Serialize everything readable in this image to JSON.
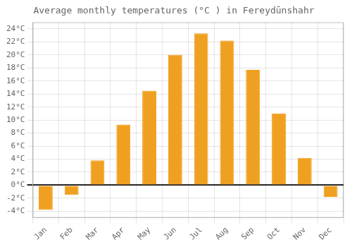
{
  "chart_data": {
    "type": "bar",
    "title": "Average monthly temperatures (°C ) in Fereydūnshahr",
    "categories": [
      "Jan",
      "Feb",
      "Mar",
      "Apr",
      "May",
      "Jun",
      "Jul",
      "Aug",
      "Sep",
      "Oct",
      "Nov",
      "Dec"
    ],
    "values": [
      -3.8,
      -1.5,
      3.8,
      9.3,
      14.5,
      20.0,
      23.3,
      22.2,
      17.7,
      11.0,
      4.2,
      -1.8
    ],
    "color": "#F0A020",
    "ylim": [
      -5,
      25
    ],
    "yticks": [
      {
        "value": -4,
        "label": "-4°C"
      },
      {
        "value": -2,
        "label": "-2°C"
      },
      {
        "value": 0,
        "label": "0°C"
      },
      {
        "value": 2,
        "label": "2°C"
      },
      {
        "value": 4,
        "label": "4°C"
      },
      {
        "value": 6,
        "label": "6°C"
      },
      {
        "value": 8,
        "label": "8°C"
      },
      {
        "value": 10,
        "label": "10°C"
      },
      {
        "value": 12,
        "label": "12°C"
      },
      {
        "value": 14,
        "label": "14°C"
      },
      {
        "value": 16,
        "label": "16°C"
      },
      {
        "value": 18,
        "label": "18°C"
      },
      {
        "value": 20,
        "label": "20°C"
      },
      {
        "value": 22,
        "label": "22°C"
      },
      {
        "value": 24,
        "label": "24°C"
      }
    ],
    "grid": true
  }
}
